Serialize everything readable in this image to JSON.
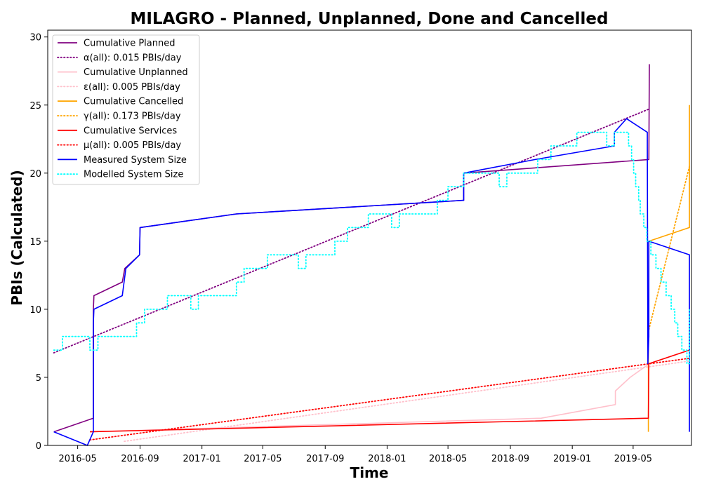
{
  "chart_data": {
    "type": "line",
    "title": "MILAGRO - Planned, Unplanned, Done  and Cancelled",
    "xlabel": "Time",
    "ylabel": "PBIs (Calculated)",
    "xlim": [
      "2016-03-03",
      "2019-08-24"
    ],
    "ylim": [
      0,
      30.5
    ],
    "xticks": [
      {
        "date": "2016-05-01",
        "label": "2016-05"
      },
      {
        "date": "2016-09-01",
        "label": "2016-09"
      },
      {
        "date": "2017-01-01",
        "label": "2017-01"
      },
      {
        "date": "2017-05-01",
        "label": "2017-05"
      },
      {
        "date": "2017-09-01",
        "label": "2017-09"
      },
      {
        "date": "2018-01-01",
        "label": "2018-01"
      },
      {
        "date": "2018-05-01",
        "label": "2018-05"
      },
      {
        "date": "2018-09-01",
        "label": "2018-09"
      },
      {
        "date": "2019-01-01",
        "label": "2019-01"
      },
      {
        "date": "2019-05-01",
        "label": "2019-05"
      }
    ],
    "yticks": [
      0,
      5,
      10,
      15,
      20,
      25,
      30
    ],
    "grid": false,
    "legend_position": "top-left",
    "series": [
      {
        "name": "Cumulative Planned",
        "color": "#800080",
        "style": "solid",
        "points": [
          [
            "2016-03-15",
            1
          ],
          [
            "2016-06-01",
            2
          ],
          [
            "2016-06-01",
            10
          ],
          [
            "2016-06-02",
            11
          ],
          [
            "2016-07-28",
            12
          ],
          [
            "2016-08-02",
            13
          ],
          [
            "2016-08-31",
            14
          ],
          [
            "2016-09-01",
            16
          ],
          [
            "2017-03-10",
            17
          ],
          [
            "2018-06-01",
            18
          ],
          [
            "2018-06-01",
            20
          ],
          [
            "2019-06-01",
            21
          ],
          [
            "2019-06-02",
            28
          ]
        ]
      },
      {
        "name": "α(all): 0.015 PBIs/day",
        "color": "#800080",
        "style": "dotted",
        "points": [
          [
            "2016-03-15",
            6.8
          ],
          [
            "2019-06-01",
            24.7
          ]
        ]
      },
      {
        "name": "Cumulative Unplanned",
        "color": "#ffc0cb",
        "style": "solid",
        "points": [
          [
            "2016-05-25",
            1
          ],
          [
            "2018-11-01",
            2
          ],
          [
            "2019-03-27",
            3
          ],
          [
            "2019-03-27",
            4
          ],
          [
            "2019-04-25",
            5
          ],
          [
            "2019-06-02",
            6
          ],
          [
            "2019-08-20",
            7
          ]
        ]
      },
      {
        "name": "ε(all): 0.005 PBIs/day",
        "color": "#ffc0cb",
        "style": "dotted",
        "points": [
          [
            "2016-08-01",
            0.3
          ],
          [
            "2019-08-20",
            6.2
          ]
        ]
      },
      {
        "name": "Cumulative Cancelled",
        "color": "#ffa500",
        "style": "solid",
        "points": [
          [
            "2019-05-31",
            1
          ],
          [
            "2019-05-31",
            6
          ],
          [
            "2019-06-01",
            15
          ],
          [
            "2019-08-20",
            16
          ],
          [
            "2019-08-20",
            25
          ]
        ]
      },
      {
        "name": "γ(all): 0.173 PBIs/day",
        "color": "#ffa500",
        "style": "dotted",
        "points": [
          [
            "2019-06-01",
            8.5
          ],
          [
            "2019-08-20",
            20.5
          ]
        ]
      },
      {
        "name": "Cumulative Services",
        "color": "#ff0000",
        "style": "solid",
        "points": [
          [
            "2016-05-25",
            1
          ],
          [
            "2019-05-31",
            2
          ],
          [
            "2019-06-01",
            6
          ],
          [
            "2019-08-20",
            7
          ]
        ]
      },
      {
        "name": "μ(all): 0.005 PBIs/day",
        "color": "#ff0000",
        "style": "dotted",
        "points": [
          [
            "2016-05-25",
            0.4
          ],
          [
            "2019-08-20",
            6.4
          ]
        ]
      },
      {
        "name": "Measured System Size",
        "color": "#0000ff",
        "style": "solid",
        "points": [
          [
            "2016-03-15",
            1
          ],
          [
            "2016-05-20",
            0
          ],
          [
            "2016-06-01",
            1
          ],
          [
            "2016-06-01",
            9
          ],
          [
            "2016-06-02",
            10
          ],
          [
            "2016-07-28",
            11
          ],
          [
            "2016-08-04",
            13
          ],
          [
            "2016-08-31",
            14
          ],
          [
            "2016-09-01",
            16
          ],
          [
            "2017-03-10",
            17
          ],
          [
            "2018-06-01",
            18
          ],
          [
            "2018-06-01",
            20
          ],
          [
            "2018-10-20",
            21
          ],
          [
            "2019-03-25",
            22
          ],
          [
            "2019-03-25",
            23
          ],
          [
            "2019-04-18",
            24
          ],
          [
            "2019-05-29",
            23
          ],
          [
            "2019-05-29",
            22
          ],
          [
            "2019-05-30",
            6
          ],
          [
            "2019-05-31",
            7
          ],
          [
            "2019-06-01",
            8
          ],
          [
            "2019-06-01",
            15
          ],
          [
            "2019-08-20",
            14
          ],
          [
            "2019-08-20",
            1
          ]
        ]
      },
      {
        "name": "Modelled System Size",
        "color": "#00ffff",
        "style": "dotted",
        "points": [
          [
            "2016-03-15",
            7
          ],
          [
            "2016-04-01",
            7
          ],
          [
            "2016-04-01",
            8
          ],
          [
            "2016-05-25",
            8
          ],
          [
            "2016-05-25",
            7
          ],
          [
            "2016-06-10",
            7
          ],
          [
            "2016-06-10",
            8
          ],
          [
            "2016-08-25",
            8
          ],
          [
            "2016-08-25",
            9
          ],
          [
            "2016-09-10",
            9
          ],
          [
            "2016-09-10",
            10
          ],
          [
            "2016-10-25",
            10
          ],
          [
            "2016-10-25",
            11
          ],
          [
            "2016-12-10",
            11
          ],
          [
            "2016-12-10",
            10
          ],
          [
            "2016-12-25",
            10
          ],
          [
            "2016-12-25",
            11
          ],
          [
            "2017-03-10",
            11
          ],
          [
            "2017-03-10",
            12
          ],
          [
            "2017-03-25",
            12
          ],
          [
            "2017-03-25",
            13
          ],
          [
            "2017-05-10",
            13
          ],
          [
            "2017-05-10",
            14
          ],
          [
            "2017-07-10",
            14
          ],
          [
            "2017-07-10",
            13
          ],
          [
            "2017-07-25",
            13
          ],
          [
            "2017-07-25",
            14
          ],
          [
            "2017-09-20",
            14
          ],
          [
            "2017-09-20",
            15
          ],
          [
            "2017-10-15",
            15
          ],
          [
            "2017-10-15",
            16
          ],
          [
            "2017-11-25",
            16
          ],
          [
            "2017-11-25",
            17
          ],
          [
            "2018-01-10",
            17
          ],
          [
            "2018-01-10",
            16
          ],
          [
            "2018-01-25",
            16
          ],
          [
            "2018-01-25",
            17
          ],
          [
            "2018-04-10",
            17
          ],
          [
            "2018-04-10",
            18
          ],
          [
            "2018-05-01",
            18
          ],
          [
            "2018-05-01",
            19
          ],
          [
            "2018-06-01",
            19
          ],
          [
            "2018-06-01",
            20
          ],
          [
            "2018-08-10",
            20
          ],
          [
            "2018-08-10",
            19
          ],
          [
            "2018-08-25",
            19
          ],
          [
            "2018-08-25",
            20
          ],
          [
            "2018-10-25",
            20
          ],
          [
            "2018-10-25",
            21
          ],
          [
            "2018-11-20",
            21
          ],
          [
            "2018-11-20",
            22
          ],
          [
            "2019-01-10",
            22
          ],
          [
            "2019-01-10",
            23
          ],
          [
            "2019-03-10",
            23
          ],
          [
            "2019-03-10",
            22
          ],
          [
            "2019-03-25",
            22
          ],
          [
            "2019-03-25",
            23
          ],
          [
            "2019-04-22",
            23
          ],
          [
            "2019-04-22",
            22
          ],
          [
            "2019-04-28",
            22
          ],
          [
            "2019-04-28",
            21
          ],
          [
            "2019-05-02",
            21
          ],
          [
            "2019-05-02",
            20
          ],
          [
            "2019-05-06",
            20
          ],
          [
            "2019-05-06",
            19
          ],
          [
            "2019-05-12",
            19
          ],
          [
            "2019-05-12",
            18
          ],
          [
            "2019-05-15",
            18
          ],
          [
            "2019-05-15",
            17
          ],
          [
            "2019-05-22",
            17
          ],
          [
            "2019-05-22",
            16
          ],
          [
            "2019-05-28",
            16
          ],
          [
            "2019-05-28",
            15
          ],
          [
            "2019-06-05",
            15
          ],
          [
            "2019-06-05",
            14
          ],
          [
            "2019-06-15",
            14
          ],
          [
            "2019-06-15",
            13
          ],
          [
            "2019-06-25",
            13
          ],
          [
            "2019-06-25",
            12
          ],
          [
            "2019-07-05",
            12
          ],
          [
            "2019-07-05",
            11
          ],
          [
            "2019-07-15",
            11
          ],
          [
            "2019-07-15",
            10
          ],
          [
            "2019-07-22",
            10
          ],
          [
            "2019-07-22",
            9
          ],
          [
            "2019-07-28",
            9
          ],
          [
            "2019-07-28",
            8
          ],
          [
            "2019-08-05",
            8
          ],
          [
            "2019-08-05",
            7
          ],
          [
            "2019-08-15",
            7
          ],
          [
            "2019-08-15",
            6
          ],
          [
            "2019-08-20",
            6
          ],
          [
            "2019-08-20",
            10
          ]
        ]
      }
    ]
  }
}
